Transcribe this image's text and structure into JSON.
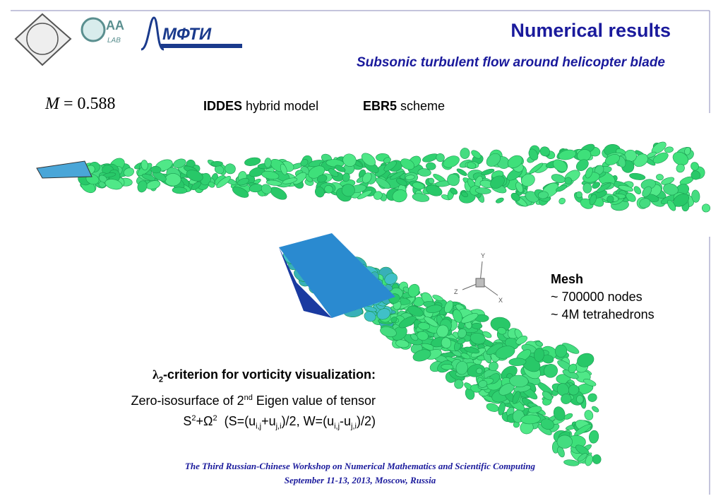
{
  "header": {
    "title": "Numerical results",
    "subtitle": "Subsonic turbulent flow around helicopter blade",
    "logos": [
      "AA",
      "LAB",
      "МФТИ"
    ]
  },
  "params": {
    "mach_symbol": "M",
    "mach_eq": " = ",
    "mach_value": "0.588",
    "model_bold": "IDDES",
    "model_rest": " hybrid model",
    "scheme_bold": "EBR5",
    "scheme_rest": " scheme"
  },
  "axes_labels": [
    "Y",
    "Z",
    "X"
  ],
  "mesh": {
    "title": "Mesh",
    "lines": [
      "~ 700000 nodes",
      "~ 4M tetrahedrons"
    ]
  },
  "criterion": {
    "lambda": "λ",
    "lambda_sub": "2",
    "heading": "-criterion for vorticity visualization:",
    "line1": [
      "Zero-isosurface of 2",
      "nd",
      " Eigen value of tensor"
    ],
    "line2": [
      "S",
      "2",
      "+Ω",
      "2",
      "  (S=(u",
      "i,j",
      "+u",
      "j,i",
      ")/2, W=(u",
      "i,j",
      "-u",
      "j,i",
      ")/2)"
    ]
  },
  "footer": [
    "The Third Russian-Chinese Workshop on Numerical Mathematics and Scientific Computing",
    "September 11-13, 2013, Moscow, Russia"
  ]
}
